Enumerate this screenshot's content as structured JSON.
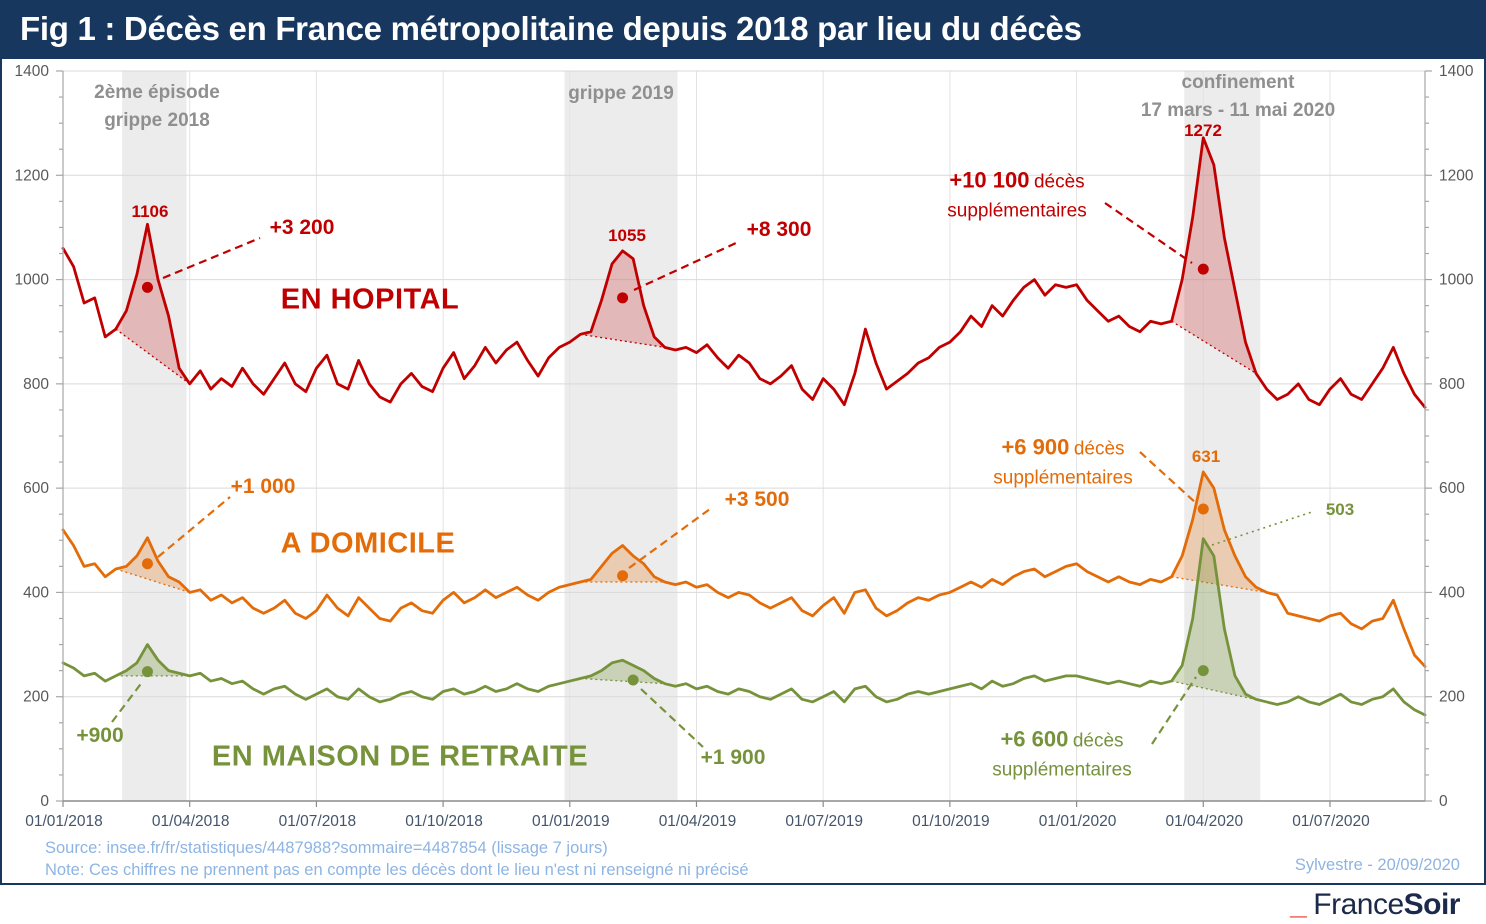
{
  "title": "Fig 1 : Décès en France métropolitaine depuis 2018 par lieu du décès",
  "annotations": {
    "deces_word": "décès",
    "supp_word": "supplémentaires"
  },
  "footer": {
    "source": "Source: insee.fr/fr/statistiques/4487988?sommaire=4487854  (lissage 7 jours)",
    "note": "Note: Ces chiffres ne prennent pas en compte les décès dont le lieu n'est ni renseigné ni précisé",
    "credit": "Sylvestre - 20/09/2020",
    "logo_underscore": "_",
    "logo_part1": "France",
    "logo_part2": "Soir"
  },
  "chart_data": {
    "type": "line",
    "ylim": [
      0,
      1400
    ],
    "y_ticks": [
      0,
      200,
      400,
      600,
      800,
      1000,
      1200,
      1400
    ],
    "y_minor_step": 50,
    "x_ticks": [
      {
        "label": "01/01/2018",
        "index": 0
      },
      {
        "label": "01/04/2018",
        "index": 12
      },
      {
        "label": "01/07/2018",
        "index": 24
      },
      {
        "label": "01/10/2018",
        "index": 36
      },
      {
        "label": "01/01/2019",
        "index": 48
      },
      {
        "label": "01/04/2019",
        "index": 60
      },
      {
        "label": "01/07/2019",
        "index": 72
      },
      {
        "label": "01/10/2019",
        "index": 84
      },
      {
        "label": "01/01/2020",
        "index": 96
      },
      {
        "label": "01/04/2020",
        "index": 108
      },
      {
        "label": "01/07/2020",
        "index": 120
      }
    ],
    "bands": [
      {
        "from": 5.6,
        "to": 11.7,
        "label1": "2ème épisode",
        "label2": "grippe 2018"
      },
      {
        "from": 47.5,
        "to": 58.2,
        "label1": "grippe 2019",
        "label2": ""
      },
      {
        "from": 106.2,
        "to": 113.4,
        "label1": "confinement",
        "label2": "17 mars - 11 mai 2020"
      }
    ],
    "series": [
      {
        "name": "EN HOPITAL",
        "color": "#C00000",
        "fill": "rgba(192,0,0,0.22)",
        "values": [
          1060,
          1025,
          955,
          965,
          890,
          905,
          940,
          1010,
          1106,
          1000,
          930,
          830,
          800,
          825,
          790,
          810,
          795,
          830,
          800,
          780,
          810,
          840,
          800,
          785,
          830,
          855,
          800,
          790,
          845,
          800,
          775,
          765,
          800,
          820,
          795,
          785,
          830,
          860,
          810,
          835,
          870,
          840,
          865,
          880,
          845,
          815,
          850,
          870,
          880,
          895,
          900,
          960,
          1030,
          1055,
          1040,
          950,
          890,
          870,
          865,
          870,
          860,
          875,
          850,
          830,
          855,
          840,
          810,
          800,
          815,
          835,
          790,
          770,
          810,
          790,
          760,
          820,
          905,
          840,
          790,
          805,
          820,
          840,
          850,
          870,
          880,
          900,
          930,
          910,
          950,
          930,
          960,
          985,
          1000,
          970,
          990,
          985,
          990,
          960,
          940,
          920,
          930,
          910,
          900,
          920,
          915,
          920,
          1000,
          1120,
          1272,
          1220,
          1080,
          980,
          880,
          820,
          790,
          770,
          780,
          800,
          770,
          760,
          790,
          810,
          780,
          770,
          800,
          830,
          870,
          820,
          780,
          755
        ],
        "excess_windows": [
          {
            "from": 5,
            "to": 12,
            "excess": "+3 200"
          },
          {
            "from": 49,
            "to": 57,
            "excess": "+8 300"
          },
          {
            "from": 105,
            "to": 113,
            "excess": "+10 100"
          }
        ],
        "markers": [
          {
            "index": 8,
            "value": 985
          },
          {
            "index": 53,
            "value": 965
          },
          {
            "index": 108,
            "value": 1020
          }
        ],
        "peaks": [
          {
            "index": 8,
            "value": 1106
          },
          {
            "index": 53,
            "value": 1055
          },
          {
            "index": 108,
            "value": 1272
          }
        ]
      },
      {
        "name": "A DOMICILE",
        "color": "#E36C09",
        "fill": "rgba(227,108,9,0.25)",
        "values": [
          520,
          490,
          450,
          455,
          430,
          445,
          450,
          470,
          505,
          460,
          430,
          420,
          400,
          405,
          385,
          395,
          380,
          390,
          370,
          360,
          370,
          385,
          360,
          350,
          365,
          395,
          370,
          355,
          390,
          370,
          350,
          345,
          370,
          380,
          365,
          360,
          385,
          400,
          380,
          390,
          405,
          390,
          400,
          410,
          395,
          385,
          400,
          410,
          415,
          420,
          425,
          450,
          475,
          490,
          470,
          455,
          430,
          420,
          415,
          420,
          410,
          415,
          400,
          390,
          400,
          395,
          380,
          370,
          380,
          390,
          365,
          355,
          375,
          390,
          360,
          400,
          405,
          370,
          355,
          365,
          380,
          390,
          385,
          395,
          400,
          410,
          420,
          410,
          425,
          415,
          430,
          440,
          445,
          430,
          440,
          450,
          455,
          440,
          430,
          420,
          430,
          420,
          415,
          425,
          420,
          430,
          470,
          540,
          631,
          600,
          520,
          470,
          430,
          410,
          400,
          395,
          360,
          355,
          350,
          345,
          355,
          360,
          340,
          330,
          345,
          350,
          385,
          330,
          280,
          258
        ],
        "excess_windows": [
          {
            "from": 5,
            "to": 12,
            "excess": "+1 000"
          },
          {
            "from": 49,
            "to": 57,
            "excess": "+3 500"
          },
          {
            "from": 105,
            "to": 114,
            "excess": "+6 900"
          }
        ],
        "markers": [
          {
            "index": 8,
            "value": 455
          },
          {
            "index": 53,
            "value": 432
          },
          {
            "index": 108,
            "value": 560
          }
        ],
        "peaks": [
          {
            "index": 108,
            "value": 631
          }
        ]
      },
      {
        "name": "EN MAISON DE RETRAITE",
        "color": "#76933C",
        "fill": "rgba(118,147,60,0.30)",
        "values": [
          265,
          255,
          240,
          245,
          230,
          240,
          250,
          265,
          300,
          270,
          250,
          245,
          240,
          245,
          230,
          235,
          225,
          230,
          215,
          205,
          215,
          220,
          205,
          195,
          205,
          215,
          200,
          195,
          215,
          200,
          190,
          195,
          205,
          210,
          200,
          195,
          210,
          215,
          205,
          210,
          220,
          210,
          215,
          225,
          215,
          210,
          220,
          225,
          230,
          235,
          240,
          250,
          265,
          270,
          260,
          250,
          235,
          225,
          220,
          225,
          215,
          220,
          210,
          205,
          215,
          210,
          200,
          195,
          205,
          215,
          195,
          190,
          200,
          210,
          190,
          215,
          220,
          200,
          190,
          195,
          205,
          210,
          205,
          210,
          215,
          220,
          225,
          215,
          230,
          220,
          225,
          235,
          240,
          230,
          235,
          240,
          240,
          235,
          230,
          225,
          230,
          225,
          220,
          230,
          225,
          230,
          260,
          350,
          503,
          470,
          330,
          240,
          205,
          195,
          190,
          185,
          190,
          200,
          190,
          185,
          195,
          205,
          190,
          185,
          195,
          200,
          215,
          190,
          175,
          165
        ],
        "excess_windows": [
          {
            "from": 5,
            "to": 12,
            "excess": "+900"
          },
          {
            "from": 49,
            "to": 57,
            "excess": "+1 900"
          },
          {
            "from": 105,
            "to": 114,
            "excess": "+6 600"
          }
        ],
        "markers": [
          {
            "index": 8,
            "value": 248
          },
          {
            "index": 54,
            "value": 232
          },
          {
            "index": 108,
            "value": 250
          }
        ],
        "peaks": [
          {
            "index": 108,
            "value": 503
          }
        ]
      }
    ]
  }
}
